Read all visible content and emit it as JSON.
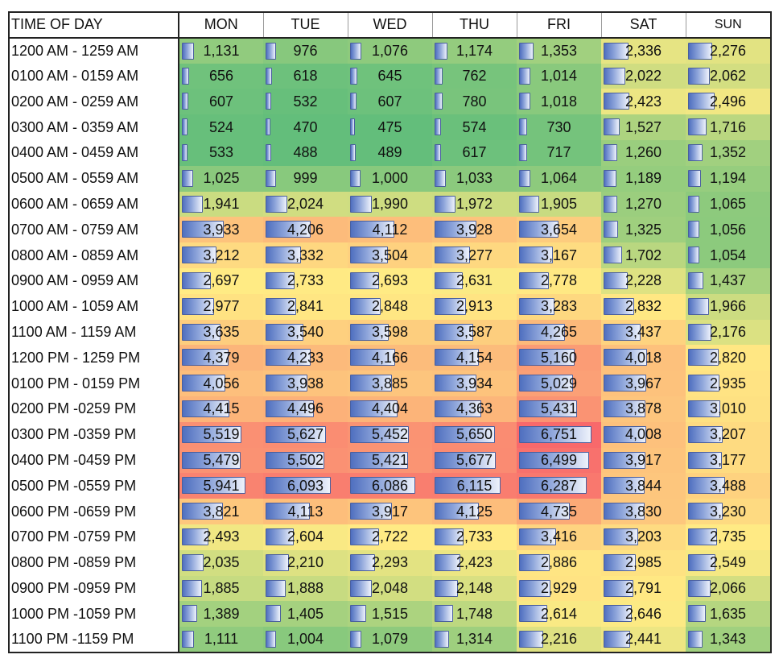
{
  "chart_data": {
    "type": "heatmap",
    "corner_label": "TIME OF DAY",
    "columns": [
      "MON",
      "TUE",
      "WED",
      "THU",
      "FRI",
      "SAT",
      "SUN"
    ],
    "rows": [
      "1200 AM - 1259 AM",
      "0100 AM - 0159 AM",
      "0200 AM - 0259 AM",
      "0300 AM - 0359 AM",
      "0400 AM - 0459 AM",
      "0500 AM - 0559 AM",
      "0600 AM - 0659 AM",
      "0700 AM - 0759 AM",
      "0800 AM - 0859 AM",
      "0900 AM - 0959 AM",
      "1000 AM - 1059 AM",
      "1100 AM - 1159 AM",
      "1200 PM - 1259 PM",
      "0100 PM - 0159 PM",
      "0200 PM -0259 PM",
      "0300 PM -0359 PM",
      "0400 PM -0459 PM",
      "0500 PM -0559 PM",
      "0600 PM -0659 PM",
      "0700 PM -0759 PM",
      "0800 PM -0859 PM",
      "0900 PM -0959 PM",
      "1000 PM -1059 PM",
      "1100 PM -1159 PM"
    ],
    "values": [
      [
        1131,
        976,
        1076,
        1174,
        1353,
        2336,
        2276
      ],
      [
        656,
        618,
        645,
        762,
        1014,
        2022,
        2062
      ],
      [
        607,
        532,
        607,
        780,
        1018,
        2423,
        2496
      ],
      [
        524,
        470,
        475,
        574,
        730,
        1527,
        1716
      ],
      [
        533,
        488,
        489,
        617,
        717,
        1260,
        1352
      ],
      [
        1025,
        999,
        1000,
        1033,
        1064,
        1189,
        1194
      ],
      [
        1941,
        2024,
        1990,
        1972,
        1905,
        1270,
        1065
      ],
      [
        3933,
        4206,
        4112,
        3928,
        3654,
        1325,
        1056
      ],
      [
        3212,
        3332,
        3504,
        3277,
        3167,
        1702,
        1054
      ],
      [
        2697,
        2733,
        2693,
        2631,
        2778,
        2228,
        1437
      ],
      [
        2977,
        2841,
        2848,
        2913,
        3283,
        2832,
        1966
      ],
      [
        3635,
        3540,
        3598,
        3587,
        4265,
        3437,
        2176
      ],
      [
        4379,
        4233,
        4166,
        4154,
        5160,
        4018,
        2820
      ],
      [
        4056,
        3938,
        3885,
        3934,
        5029,
        3967,
        2935
      ],
      [
        4415,
        4496,
        4404,
        4363,
        5431,
        3878,
        3010
      ],
      [
        5519,
        5627,
        5452,
        5650,
        6751,
        4008,
        3207
      ],
      [
        5479,
        5502,
        5421,
        5677,
        6499,
        3917,
        3177
      ],
      [
        5941,
        6093,
        6086,
        6115,
        6287,
        3844,
        3488
      ],
      [
        3821,
        4113,
        3917,
        4125,
        4735,
        3830,
        3230
      ],
      [
        2493,
        2604,
        2722,
        2733,
        3416,
        3203,
        2735
      ],
      [
        2035,
        2210,
        2293,
        2423,
        2886,
        2985,
        2549
      ],
      [
        1885,
        1888,
        2048,
        2148,
        2929,
        2791,
        2066
      ],
      [
        1389,
        1405,
        1515,
        1748,
        2614,
        2646,
        1635
      ],
      [
        1111,
        1004,
        1079,
        1314,
        2216,
        2441,
        1343
      ]
    ],
    "color_scale": {
      "type": "three-color",
      "low": "#63be7b",
      "mid": "#ffeb84",
      "high": "#f8696b"
    },
    "data_bars": {
      "fill": "#5b7bc7",
      "border": "#4a5f9e"
    },
    "legend": "none",
    "grid": false
  }
}
